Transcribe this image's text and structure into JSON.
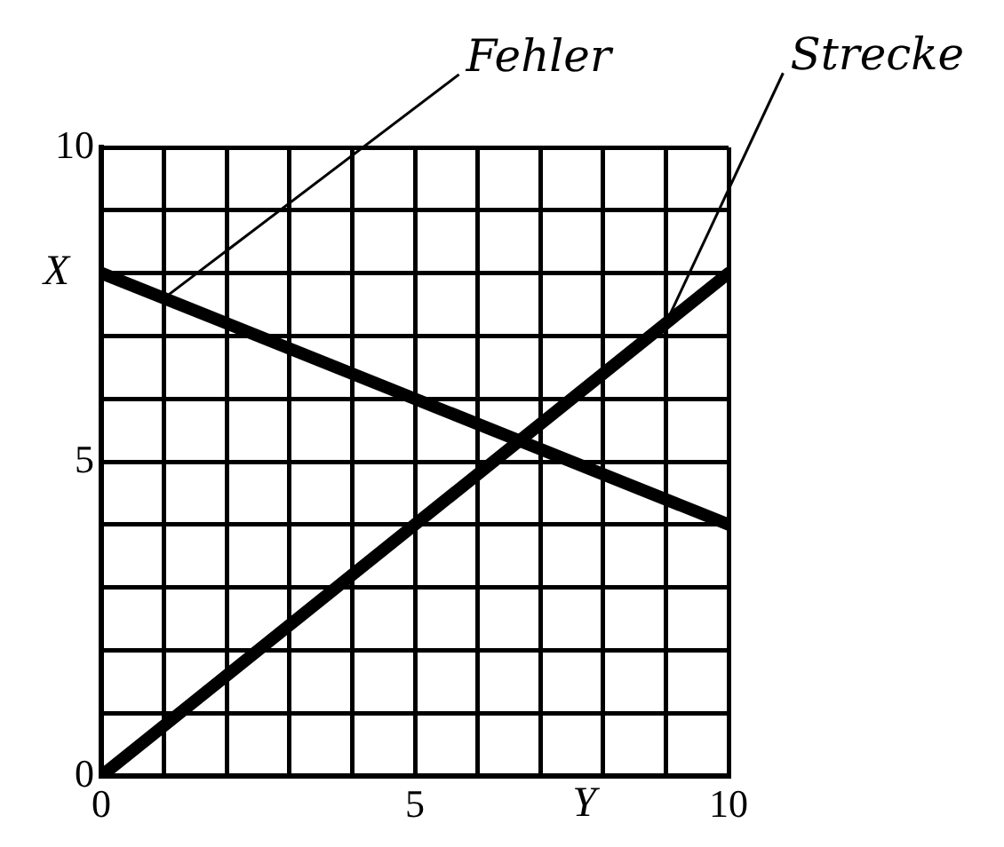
{
  "chart_data": {
    "type": "line",
    "xlabel": "Y",
    "ylabel": "X",
    "x": [
      0,
      10
    ],
    "series": [
      {
        "color": "#000000",
        "values": [
          8,
          4
        ]
      },
      {
        "color": "#000000",
        "values": [
          0,
          8
        ]
      }
    ],
    "xlim": [
      0,
      10
    ],
    "ylim": [
      0,
      10
    ],
    "xticks": [
      0,
      {
        "value": 1,
        "label": null
      },
      {
        "value": 2,
        "label": null
      },
      {
        "value": 3,
        "label": null
      },
      {
        "value": 4,
        "label": null
      },
      5,
      {
        "value": 6,
        "label": null
      },
      {
        "value": 7,
        "label": null
      },
      {
        "value": 8,
        "label": null
      },
      {
        "value": 9,
        "label": null
      },
      10
    ],
    "yticks": [
      0,
      {
        "value": 1,
        "label": null
      },
      {
        "value": 2,
        "label": null
      },
      {
        "value": 3,
        "label": null
      },
      {
        "value": 4,
        "label": null
      },
      5,
      {
        "value": 6,
        "label": null
      },
      {
        "value": 7,
        "label": null
      },
      {
        "value": 8,
        "label": null
      },
      {
        "value": 9,
        "label": null
      },
      10
    ],
    "grid": true,
    "legend": false,
    "marker": "none",
    "line_style": "solid",
    "annotations": [
      {
        "text": "Fehler",
        "x": 1,
        "y": 7.6
      },
      {
        "text": "Strecke",
        "x": 9,
        "y": 7.2
      }
    ]
  }
}
